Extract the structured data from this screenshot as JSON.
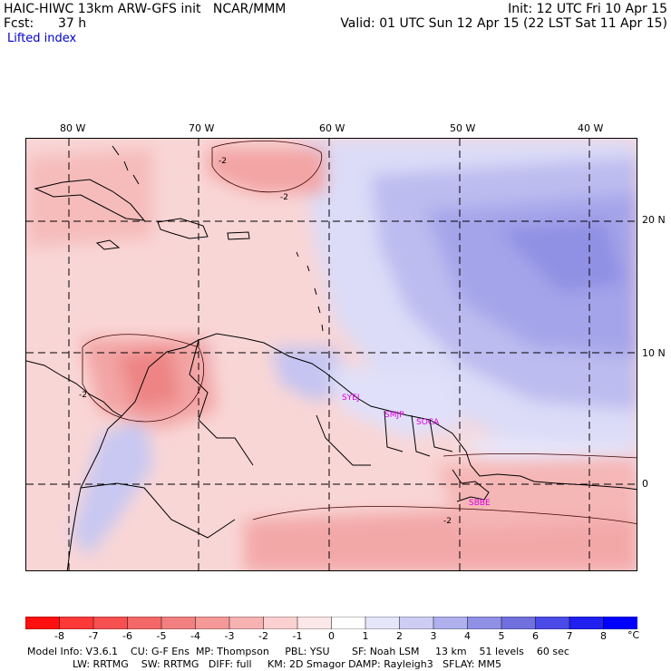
{
  "header": {
    "model_line": "HAIC-HIWC 13km ARW-GFS init   NCAR/MMM",
    "fcst_label": "Fcst:",
    "fcst_value": "37 h",
    "init_line": "Init: 12 UTC Fri 10 Apr 15",
    "valid_line": "Valid: 01 UTC Sun 12 Apr 15 (22 LST Sat 11 Apr 15)",
    "field_name": "Lifted index"
  },
  "map": {
    "lon_labels": [
      "80 W",
      "70 W",
      "60 W",
      "50 W",
      "40 W"
    ],
    "lat_labels": [
      "20 N",
      "10 N",
      "0"
    ],
    "stations": [
      "SYEJ",
      "SMJP",
      "SOCA",
      "SBBE"
    ],
    "contour_labels": [
      "-2",
      "-2",
      "-2",
      "-2"
    ],
    "colors": {
      "strong_negative": "#f07070",
      "negative": "#f7b0b0",
      "neutral": "#ffffff",
      "positive": "#c8c8f4",
      "strong_positive": "#8c8ce8",
      "coast": "#000000",
      "station": "#e000e0"
    }
  },
  "colorbar": {
    "ticks": [
      "-8",
      "-7",
      "-6",
      "-5",
      "-4",
      "-3",
      "-2",
      "-1",
      "0",
      "1",
      "2",
      "3",
      "4",
      "5",
      "6",
      "7",
      "8"
    ],
    "unit": "°C",
    "colors": [
      "#ff1010",
      "#ff3838",
      "#f75050",
      "#f46868",
      "#f28080",
      "#f49898",
      "#f7b2b2",
      "#fad0d0",
      "#fce8e8",
      "#ffffff",
      "#e6e6fa",
      "#cdcdf4",
      "#b0b0ee",
      "#9090e6",
      "#7070de",
      "#4a4ae8",
      "#2020f0",
      "#0000ff"
    ]
  },
  "footer": {
    "line1": "Model Info: V3.6.1    CU: G-F Ens  MP: Thompson     PBL: YSU       SF: Noah LSM     13 km    51 levels    60 sec",
    "line2": "LW: RRTMG    SW: RRTMG   DIFF: full     KM: 2D Smagor DAMP: Rayleigh3   SFLAY: MM5"
  }
}
